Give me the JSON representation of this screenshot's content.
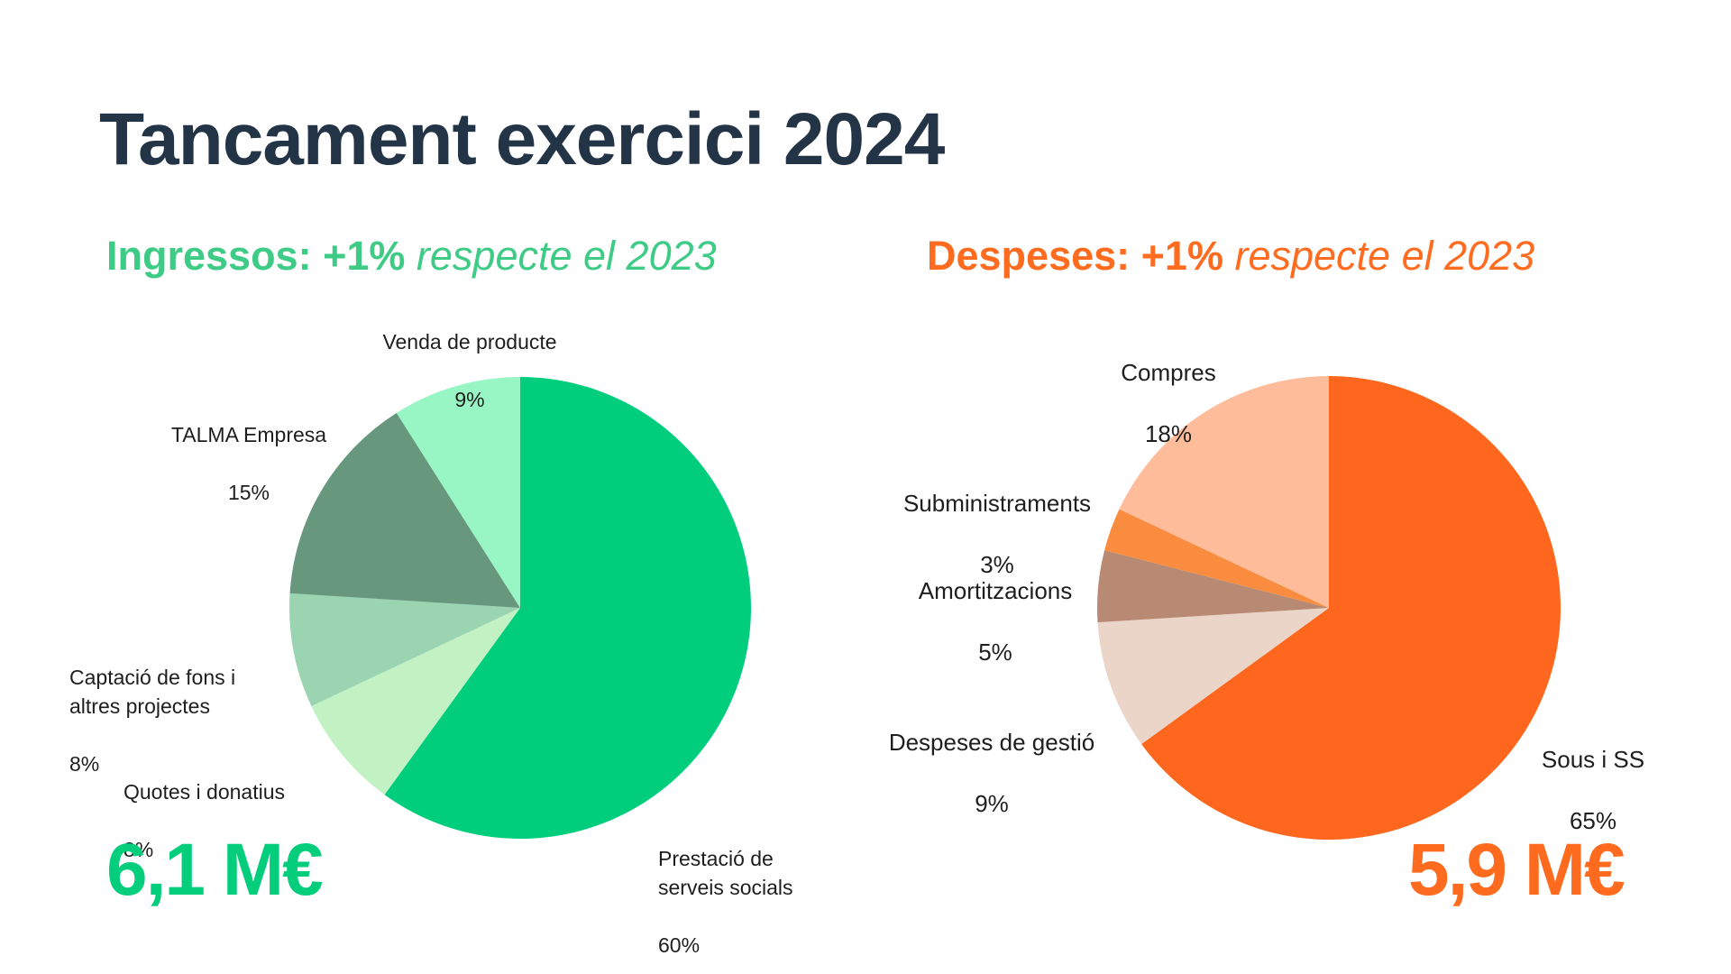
{
  "title": "Tancament exercici 2024",
  "income": {
    "subtitle_lead": "Ingressos: +1%",
    "subtitle_rest": "respecte el 2023",
    "total": "6,1 M€",
    "color": "#3ecb86"
  },
  "expenses": {
    "subtitle_lead": "Despeses: +1%",
    "subtitle_rest": "respecte el 2023",
    "total": "5,9 M€",
    "color": "#ff6b1f"
  },
  "chart_data": [
    {
      "type": "pie",
      "title": "Ingressos",
      "slices": [
        {
          "label": "Prestació de\nserveis socials",
          "value": 60,
          "pct": "60%",
          "color": "#00ce7c"
        },
        {
          "label": "Quotes i donatius",
          "value": 8,
          "pct": "8%",
          "color": "#c2f1c3"
        },
        {
          "label": "Captació de fons i\naltres projectes",
          "value": 8,
          "pct": "8%",
          "color": "#9bd4b1"
        },
        {
          "label": "TALMA Empresa",
          "value": 15,
          "pct": "15%",
          "color": "#67987e"
        },
        {
          "label": "Venda de producte",
          "value": 9,
          "pct": "9%",
          "color": "#98f6c4"
        }
      ]
    },
    {
      "type": "pie",
      "title": "Despeses",
      "slices": [
        {
          "label": "Sous i SS",
          "value": 65,
          "pct": "65%",
          "color": "#fe671d"
        },
        {
          "label": "Despeses de gestió",
          "value": 9,
          "pct": "9%",
          "color": "#ebd4c8"
        },
        {
          "label": "Amortitzacions",
          "value": 5,
          "pct": "5%",
          "color": "#b98a73"
        },
        {
          "label": "Subministraments",
          "value": 3,
          "pct": "3%",
          "color": "#f98c3e"
        },
        {
          "label": "Compres",
          "value": 18,
          "pct": "18%",
          "color": "#ffbc9b"
        }
      ]
    }
  ]
}
